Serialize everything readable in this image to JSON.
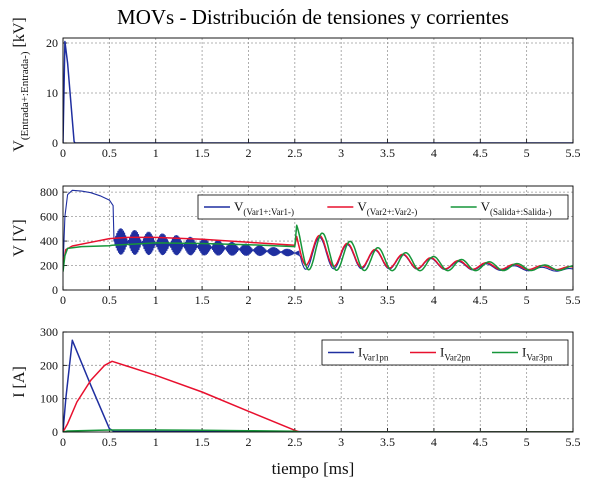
{
  "title": "MOVs - Distribución de tensiones y corrientes",
  "xlabel": "tiempo [ms]",
  "colors": {
    "blue": "#1f2fa0",
    "red": "#e8102e",
    "green": "#16963a",
    "grid": "#9a9a9a"
  },
  "chart_data": [
    {
      "type": "line",
      "ylabel_main": "V",
      "ylabel_sub": "(Entrada+:Entrada-)",
      "ylabel_unit": "[kV]",
      "xlim": [
        0,
        5.5
      ],
      "ylim": [
        0,
        21
      ],
      "xticks": [
        "0",
        "0.5",
        "1",
        "1.5",
        "2",
        "2.5",
        "3",
        "3.5",
        "4",
        "4.5",
        "5",
        "5.5"
      ],
      "yticks": [
        "0",
        "10",
        "20"
      ],
      "ytick_values": [
        0,
        10,
        20
      ],
      "grid": true,
      "legend": null,
      "series": [
        {
          "color": "blue",
          "x": [
            0,
            0.02,
            0.05,
            0.12,
            0.13,
            5.5
          ],
          "y": [
            0,
            20.3,
            16,
            0.3,
            0,
            0
          ]
        }
      ]
    },
    {
      "type": "line",
      "ylabel": "V [V]",
      "xlim": [
        0,
        5.5
      ],
      "ylim": [
        0,
        850
      ],
      "xticks": [
        "0",
        "0.5",
        "1",
        "1.5",
        "2",
        "2.5",
        "3",
        "3.5",
        "4",
        "4.5",
        "5",
        "5.5"
      ],
      "yticks": [
        "0",
        "200",
        "400",
        "600",
        "800"
      ],
      "ytick_values": [
        0,
        200,
        400,
        600,
        800
      ],
      "grid": true,
      "legend": "top-right",
      "series": [
        {
          "name_main": "V",
          "name_sub": "(Var1+:Var1-)",
          "color": "blue",
          "shape": "var1"
        },
        {
          "name_main": "V",
          "name_sub": "(Var2+:Var2-)",
          "color": "red",
          "shape": "var2"
        },
        {
          "name_main": "V",
          "name_sub": "(Salida+:Salida-)",
          "color": "green",
          "shape": "salida"
        }
      ]
    },
    {
      "type": "line",
      "ylabel": "I [A]",
      "xlim": [
        0,
        5.5
      ],
      "ylim": [
        0,
        300
      ],
      "xticks": [
        "0",
        "0.5",
        "1",
        "1.5",
        "2",
        "2.5",
        "3",
        "3.5",
        "4",
        "4.5",
        "5",
        "5.5"
      ],
      "yticks": [
        "0",
        "100",
        "200",
        "300"
      ],
      "ytick_values": [
        0,
        100,
        200,
        300
      ],
      "grid": true,
      "legend": "top-right",
      "series": [
        {
          "name_main": "I",
          "name_sub": "Var1pn",
          "color": "blue",
          "x": [
            0,
            0.03,
            0.1,
            0.3,
            0.5,
            0.55,
            5.5
          ],
          "y": [
            0,
            100,
            275,
            140,
            10,
            2,
            0
          ]
        },
        {
          "name_main": "I",
          "name_sub": "Var2pn",
          "color": "red",
          "x": [
            0,
            0.05,
            0.15,
            0.3,
            0.45,
            0.53,
            1.0,
            1.5,
            2.0,
            2.5,
            2.55,
            5.5
          ],
          "y": [
            0,
            25,
            90,
            155,
            200,
            212,
            170,
            120,
            62,
            5,
            0,
            0
          ]
        },
        {
          "name_main": "I",
          "name_sub": "Var3pn",
          "color": "green",
          "x": [
            0,
            0.05,
            0.5,
            1.0,
            1.5,
            2.0,
            2.5,
            2.55,
            5.5
          ],
          "y": [
            0,
            3,
            6,
            6,
            5,
            4,
            2,
            0,
            0
          ]
        }
      ]
    }
  ]
}
